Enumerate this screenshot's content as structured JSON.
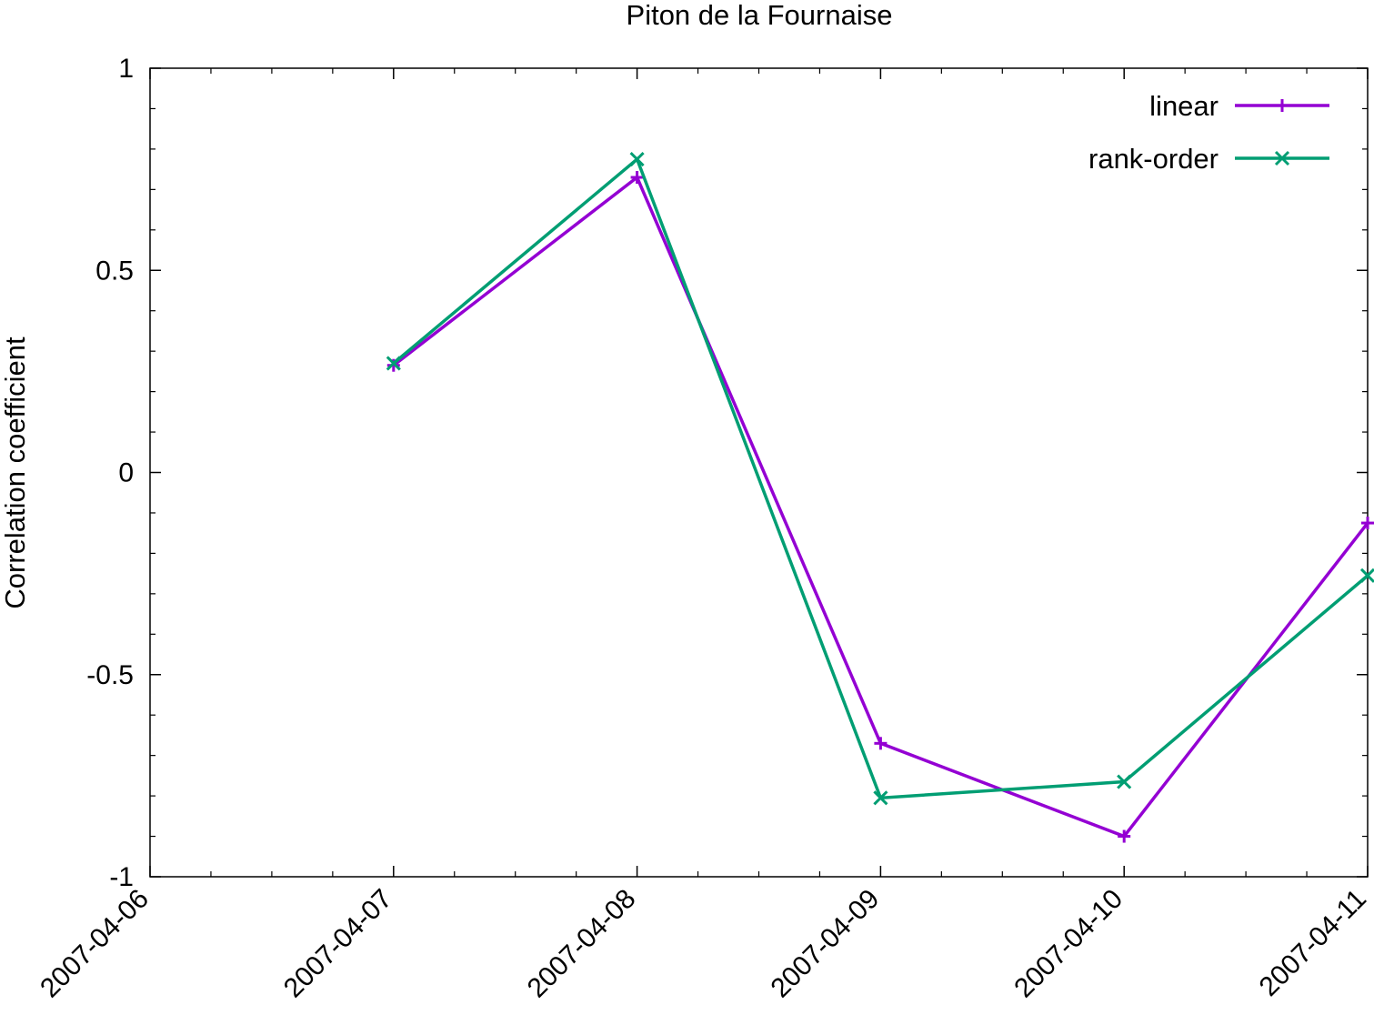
{
  "chart_data": {
    "type": "line",
    "title": "Piton de la Fournaise",
    "xlabel": "",
    "ylabel": "Correlation coefficient",
    "x": [
      "2007-04-07",
      "2007-04-08",
      "2007-04-09",
      "2007-04-10",
      "2007-04-11"
    ],
    "x_ticks": [
      "2007-04-06",
      "2007-04-07",
      "2007-04-08",
      "2007-04-09",
      "2007-04-10",
      "2007-04-11"
    ],
    "xlim": [
      "2007-04-06",
      "2007-04-11"
    ],
    "ylim": [
      -1,
      1
    ],
    "y_ticks": [
      "-1",
      "-0.5",
      "0",
      "0.5",
      "1"
    ],
    "grid": false,
    "legend_position": "top-right",
    "series": [
      {
        "name": "linear",
        "color": "#9400d3",
        "marker": "plus",
        "values": [
          0.265,
          0.73,
          -0.67,
          -0.9,
          -0.125
        ]
      },
      {
        "name": "rank-order",
        "color": "#009e73",
        "marker": "cross",
        "values": [
          0.27,
          0.775,
          -0.805,
          -0.765,
          -0.255
        ]
      }
    ]
  }
}
